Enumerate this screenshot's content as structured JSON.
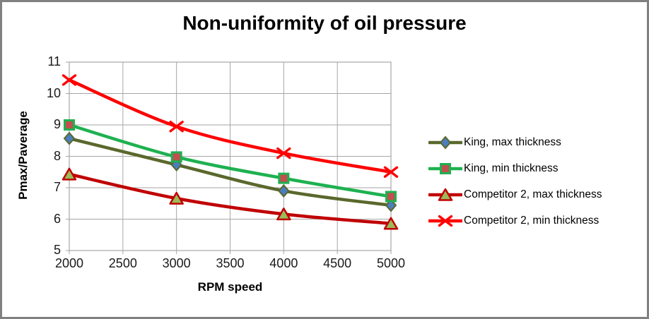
{
  "chart_data": {
    "type": "line",
    "title": "Non-uniformity of oil pressure",
    "xlabel": "RPM speed",
    "ylabel": "Pmax/Paverage",
    "xlim": [
      2000,
      5000
    ],
    "ylim": [
      5,
      11
    ],
    "x_ticks": [
      2000,
      2500,
      3000,
      3500,
      4000,
      4500,
      5000
    ],
    "y_ticks": [
      5,
      6,
      7,
      8,
      9,
      10,
      11
    ],
    "grid": true,
    "legend_position": "right",
    "x": [
      2000,
      3000,
      4000,
      5000
    ],
    "series": [
      {
        "name": "King, max thickness",
        "values": [
          8.57,
          7.73,
          6.9,
          6.44
        ],
        "line_color": "#5A682C",
        "marker": "diamond",
        "marker_fill": "#4A7EBD",
        "marker_stroke": "#5A682C"
      },
      {
        "name": "King, min thickness",
        "values": [
          9.0,
          7.98,
          7.3,
          6.72
        ],
        "line_color": "#1EB150",
        "marker": "square",
        "marker_fill": "#C0504D",
        "marker_stroke": "#1EB150"
      },
      {
        "name": "Competitor 2, max thickness",
        "values": [
          7.43,
          6.66,
          6.16,
          5.86
        ],
        "line_color": "#C00000",
        "marker": "triangle",
        "marker_fill": "#9ABB59",
        "marker_stroke": "#C00000"
      },
      {
        "name": "Competitor 2, min thickness",
        "values": [
          10.43,
          8.95,
          8.1,
          7.5
        ],
        "line_color": "#FE0000",
        "marker": "x",
        "marker_fill": "none",
        "marker_stroke": "#FE0000"
      }
    ],
    "colors": {
      "frame_border": "#808080",
      "grid": "#A6A6A6",
      "background": "#FFFFFF",
      "text": "#000000"
    }
  }
}
